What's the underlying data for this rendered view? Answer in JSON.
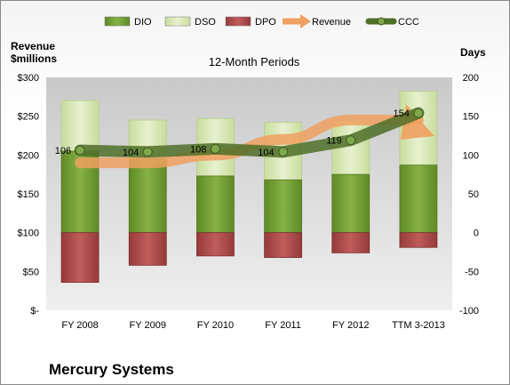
{
  "chart_data": {
    "type": "bar",
    "title": "12-Month Periods",
    "company": "Mercury Systems",
    "left_axis_title_line1": "Revenue",
    "left_axis_title_line2": "$millions",
    "right_axis_title": "Days",
    "categories": [
      "FY 2008",
      "FY 2009",
      "FY 2010",
      "FY 2011",
      "FY 2012",
      "TTM 3-2013"
    ],
    "left_ticks": [
      "$300",
      "$250",
      "$200",
      "$150",
      "$100",
      "$50",
      "$-"
    ],
    "right_ticks": [
      "200",
      "150",
      "100",
      "50",
      "0",
      "-50",
      "-100"
    ],
    "left_ylim": [
      0,
      300
    ],
    "right_ylim": [
      -100,
      200
    ],
    "grid": false,
    "legend_position": "top",
    "series": [
      {
        "name": "DIO",
        "axis": "days",
        "kind": "stacked-bar",
        "color": "#6e9a2e",
        "values": [
          105,
          95,
          73,
          68,
          75,
          87
        ]
      },
      {
        "name": "DSO",
        "axis": "days",
        "kind": "stacked-bar",
        "color": "#d8e8b4",
        "values": [
          65,
          50,
          74,
          74,
          70,
          95
        ]
      },
      {
        "name": "DPO",
        "axis": "days",
        "kind": "negative-bar",
        "color": "#a84848",
        "values": [
          -64,
          -42,
          -30,
          -32,
          -26,
          -19
        ]
      },
      {
        "name": "Revenue",
        "axis": "revenue",
        "kind": "arrow-line",
        "color": "#f0a060",
        "values": [
          190,
          190,
          200,
          220,
          245,
          245
        ]
      },
      {
        "name": "CCC",
        "axis": "days",
        "kind": "line",
        "color": "#5a7a30",
        "values": [
          106,
          104,
          108,
          104,
          119,
          154
        ]
      }
    ],
    "ccc_labels": [
      "106",
      "104",
      "108",
      "104",
      "119",
      "154"
    ]
  }
}
